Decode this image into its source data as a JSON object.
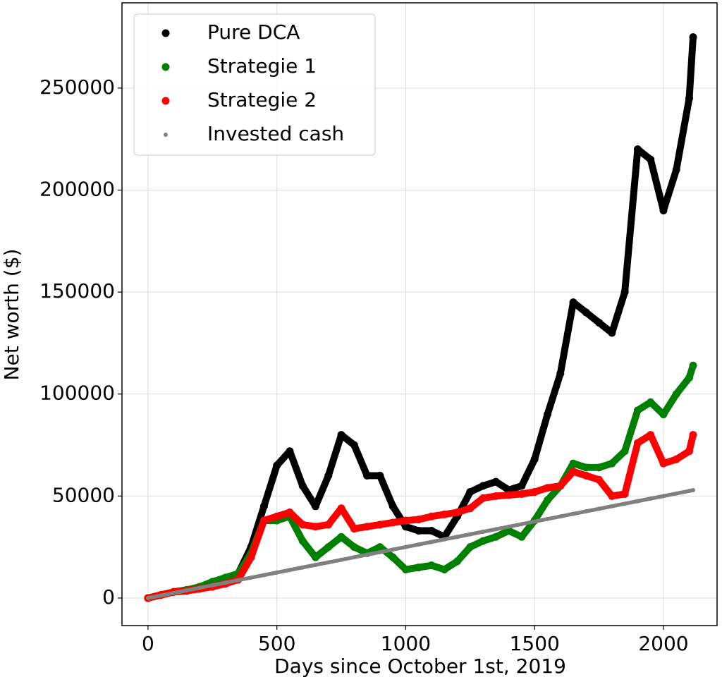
{
  "chart_data": {
    "type": "scatter",
    "xlabel": "Days since October 1st, 2019",
    "ylabel": "Net worth ($)",
    "x": [
      0,
      50,
      100,
      150,
      200,
      250,
      300,
      350,
      400,
      450,
      500,
      550,
      600,
      650,
      700,
      750,
      800,
      850,
      900,
      950,
      1000,
      1050,
      1100,
      1150,
      1200,
      1250,
      1300,
      1350,
      1400,
      1450,
      1500,
      1550,
      1600,
      1650,
      1700,
      1750,
      1800,
      1850,
      1900,
      1950,
      2000,
      2050,
      2100,
      2115
    ],
    "series": [
      {
        "name": "Pure DCA",
        "color": "#000000",
        "values": [
          0,
          1500,
          3000,
          4000,
          5000,
          7000,
          9000,
          12000,
          25000,
          45000,
          65000,
          72000,
          55000,
          45000,
          60000,
          80000,
          75000,
          60000,
          60000,
          45000,
          35000,
          33000,
          33000,
          30000,
          40000,
          52000,
          55000,
          57000,
          53000,
          55000,
          68000,
          90000,
          110000,
          145000,
          140000,
          135000,
          130000,
          150000,
          220000,
          215000,
          190000,
          210000,
          245000,
          275000
        ]
      },
      {
        "name": "Strategie 1",
        "color": "#008000",
        "values": [
          0,
          1500,
          3000,
          4000,
          5500,
          8000,
          10000,
          12000,
          22000,
          38000,
          38000,
          40000,
          28000,
          20000,
          25000,
          30000,
          25000,
          22000,
          25000,
          20000,
          14000,
          15000,
          16000,
          14000,
          18000,
          25000,
          28000,
          30000,
          33000,
          30000,
          38000,
          48000,
          55000,
          66000,
          64000,
          64000,
          66000,
          72000,
          92000,
          96000,
          90000,
          100000,
          108000,
          114000
        ]
      },
      {
        "name": "Strategie 2",
        "color": "#ff0000",
        "values": [
          0,
          1500,
          3000,
          3500,
          4500,
          5500,
          7000,
          9000,
          20000,
          38000,
          40000,
          42000,
          36000,
          35000,
          36000,
          44000,
          34000,
          35000,
          36000,
          37000,
          38000,
          38500,
          40000,
          41000,
          42000,
          44000,
          49000,
          50000,
          50500,
          51000,
          52000,
          54000,
          55000,
          62000,
          60000,
          58000,
          50000,
          51000,
          76000,
          80000,
          66000,
          68000,
          72000,
          80000
        ]
      },
      {
        "name": "Invested cash",
        "color": "#808080",
        "values": [
          0,
          1250,
          2500,
          3750,
          5000,
          6250,
          7500,
          8750,
          10000,
          11250,
          12500,
          13750,
          15000,
          16250,
          17500,
          18750,
          20000,
          21250,
          22500,
          23750,
          25000,
          26250,
          27500,
          28750,
          30000,
          31250,
          32500,
          33750,
          35000,
          36250,
          37500,
          38750,
          40000,
          41250,
          42500,
          43750,
          45000,
          46250,
          47500,
          48750,
          50000,
          51250,
          52500,
          52875
        ]
      }
    ],
    "xlim": [
      -101,
      2208
    ],
    "xticks": [
      0,
      500,
      1000,
      1500,
      2000
    ],
    "ylim": [
      -13500,
      291800
    ],
    "yticks": [
      0,
      50000,
      100000,
      150000,
      200000,
      250000
    ],
    "grid": true,
    "legend": "upper left"
  }
}
